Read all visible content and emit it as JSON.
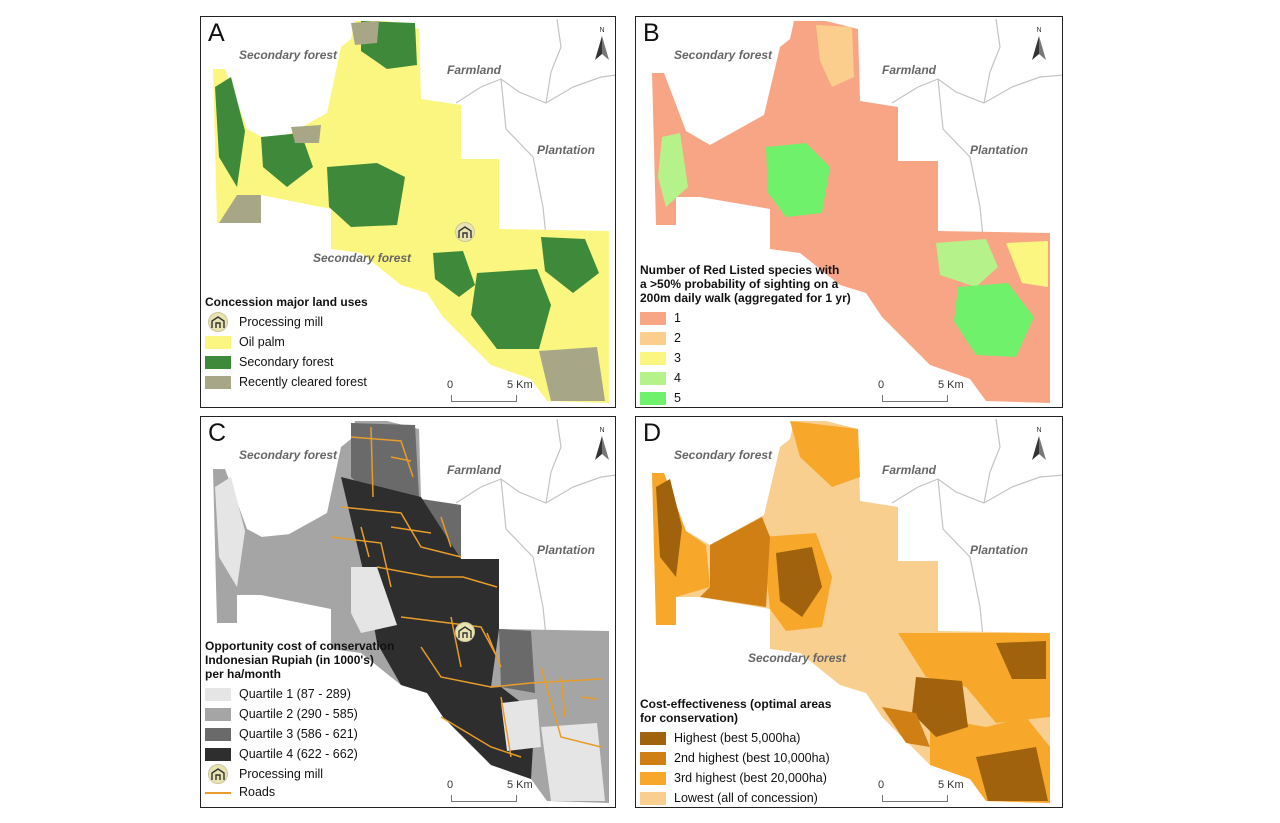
{
  "colors": {
    "oil_palm": "#fbf67f",
    "secondary_forest": "#3e8a3a",
    "recently_cleared": "#a7a787",
    "outline": "#c3c3c3",
    "roads": "#e89c2a",
    "species": [
      "#f7a584",
      "#fcce8d",
      "#fbf67f",
      "#b6f28a",
      "#6ff16b"
    ],
    "quartiles": [
      "#e5e5e5",
      "#a5a5a5",
      "#6a6a6a",
      "#2e2e2e"
    ],
    "cost_eff": [
      "#a0620d",
      "#cf7f14",
      "#f7a82a",
      "#f9cf8f"
    ]
  },
  "icons": {
    "north_arrow": "north-arrow-icon",
    "mill": "processing-mill-icon"
  },
  "compass_letter": "N",
  "scale": {
    "start": "0",
    "end": "5 Km"
  },
  "panels": {
    "A": {
      "letter": "A",
      "regions": [
        "Secondary forest",
        "Farmland",
        "Plantation",
        "Secondary forest"
      ],
      "legend": {
        "title": "Concession major land uses",
        "items": [
          "Processing mill",
          "Oil palm",
          "Secondary forest",
          "Recently cleared forest"
        ]
      }
    },
    "B": {
      "letter": "B",
      "regions": [
        "Secondary forest",
        "Farmland",
        "Plantation"
      ],
      "legend": {
        "title_lines": [
          "Number of Red Listed species with",
          "a >50% probability of sighting on a",
          "200m daily walk (aggregated for 1 yr)"
        ],
        "items": [
          "1",
          "2",
          "3",
          "4",
          "5"
        ]
      }
    },
    "C": {
      "letter": "C",
      "regions": [
        "Secondary forest",
        "Farmland",
        "Plantation"
      ],
      "legend": {
        "title_lines": [
          "Opportunity cost of conservation",
          "Indonesian Rupiah (in 1000's)",
          "per ha/month"
        ],
        "items": [
          "Quartile 1 (87 - 289)",
          "Quartile 2 (290 - 585)",
          "Quartile 3 (586 - 621)",
          "Quartile 4 (622 - 662)",
          "Processing mill",
          "Roads"
        ]
      }
    },
    "D": {
      "letter": "D",
      "regions": [
        "Secondary forest",
        "Farmland",
        "Plantation",
        "Secondary forest"
      ],
      "legend": {
        "title_lines": [
          "Cost-effectiveness (optimal areas",
          "for conservation)"
        ],
        "items": [
          "Highest (best 5,000ha)",
          "2nd highest (best 10,000ha)",
          "3rd highest (best 20,000ha)",
          "Lowest (all of concession)"
        ]
      }
    }
  }
}
